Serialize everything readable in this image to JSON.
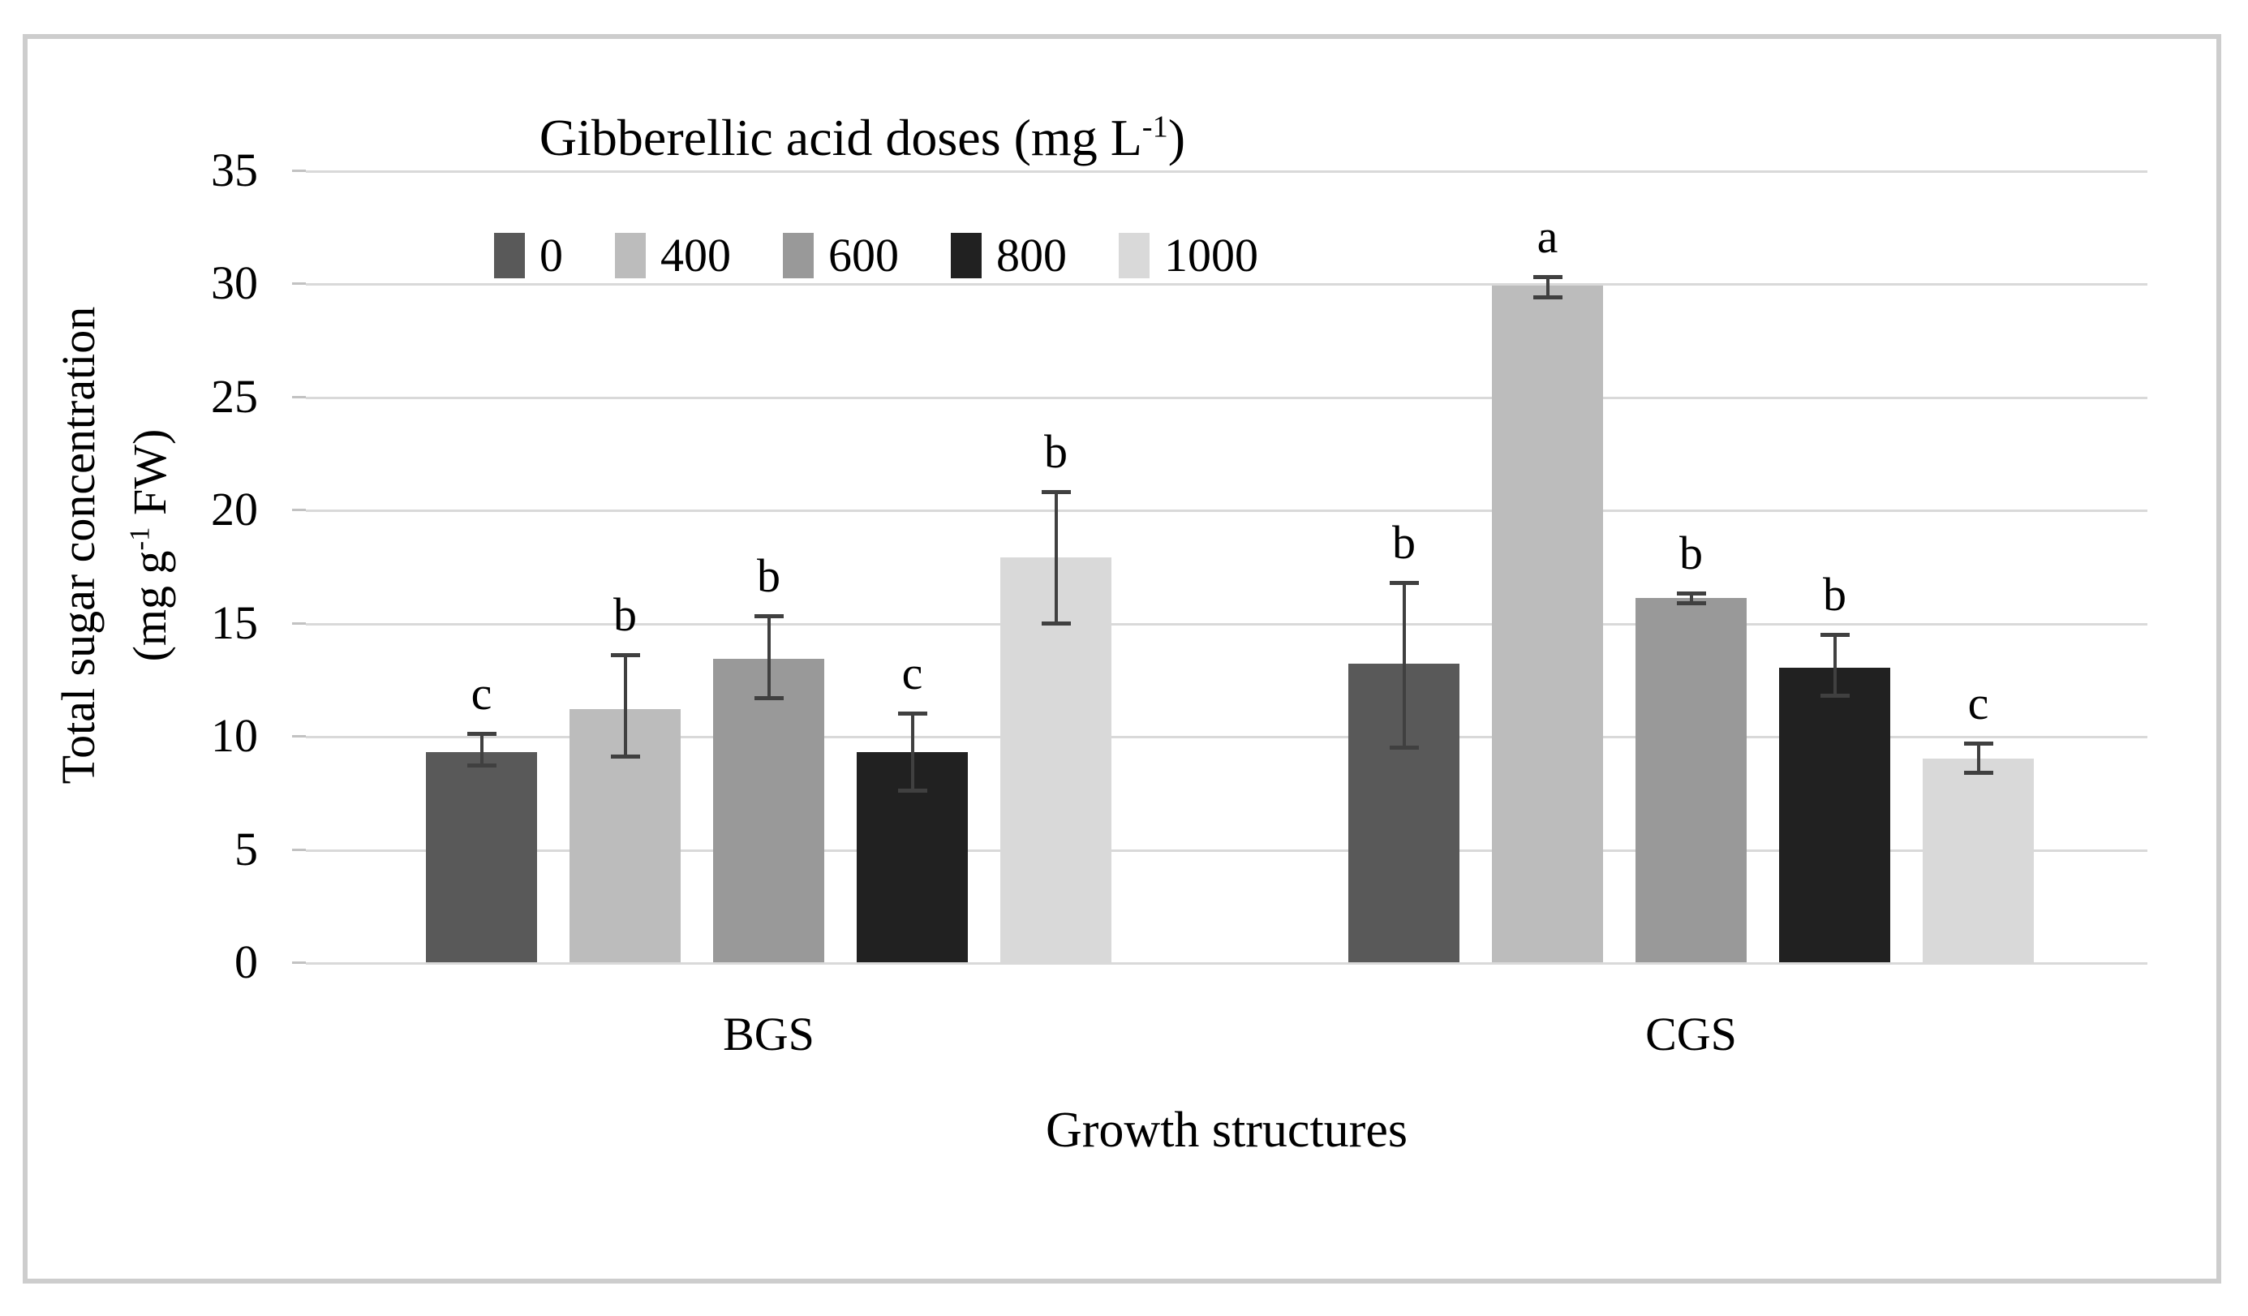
{
  "texts": {
    "legend_title_prefix": "Gibberellic acid doses (mg L",
    "legend_title_sup": "-1",
    "legend_title_suffix": ")",
    "ylabel_line1": "Total sugar concentration",
    "ylabel_line2_prefix": "(mg g",
    "ylabel_line2_sup": "-1",
    "ylabel_line2_suffix": " FW)",
    "xlabel": "Growth structures"
  },
  "colors": {
    "frame_border": "#cdcdcd",
    "gridline": "#d9d9d9",
    "error_bar": "#404040",
    "text": "#000000",
    "background": "#ffffff"
  },
  "chart_data": {
    "type": "bar",
    "title": "",
    "legend_title": "Gibberellic acid doses (mg L-1)",
    "legend_position": "top-inside",
    "xlabel": "Growth structures",
    "ylabel": "Total sugar concentration (mg g-1 FW)",
    "categories": [
      "BGS",
      "CGS"
    ],
    "ylim": [
      0,
      35
    ],
    "yticks": [
      0,
      5,
      10,
      15,
      20,
      25,
      30,
      35
    ],
    "grid": true,
    "error_bars": true,
    "series": [
      {
        "name": "0",
        "color": "#595959",
        "values": [
          9.3,
          13.2
        ],
        "err_low": [
          8.7,
          9.5
        ],
        "err_high": [
          10.1,
          16.8
        ],
        "letters": [
          "c",
          "b"
        ]
      },
      {
        "name": "400",
        "color": "#bcbcbc",
        "values": [
          11.2,
          29.9
        ],
        "err_low": [
          9.1,
          29.4
        ],
        "err_high": [
          13.6,
          30.3
        ],
        "letters": [
          "b",
          "a"
        ]
      },
      {
        "name": "600",
        "color": "#999999",
        "values": [
          13.4,
          16.1
        ],
        "err_low": [
          11.7,
          15.9
        ],
        "err_high": [
          15.3,
          16.3
        ],
        "letters": [
          "b",
          "b"
        ]
      },
      {
        "name": "800",
        "color": "#212121",
        "values": [
          9.3,
          13.0
        ],
        "err_low": [
          7.6,
          11.8
        ],
        "err_high": [
          11.0,
          14.5
        ],
        "letters": [
          "c",
          "b"
        ]
      },
      {
        "name": "1000",
        "color": "#d9d9d9",
        "values": [
          17.9,
          9.0
        ],
        "err_low": [
          15.0,
          8.4
        ],
        "err_high": [
          20.8,
          9.7
        ],
        "letters": [
          "b",
          "c"
        ]
      }
    ]
  }
}
